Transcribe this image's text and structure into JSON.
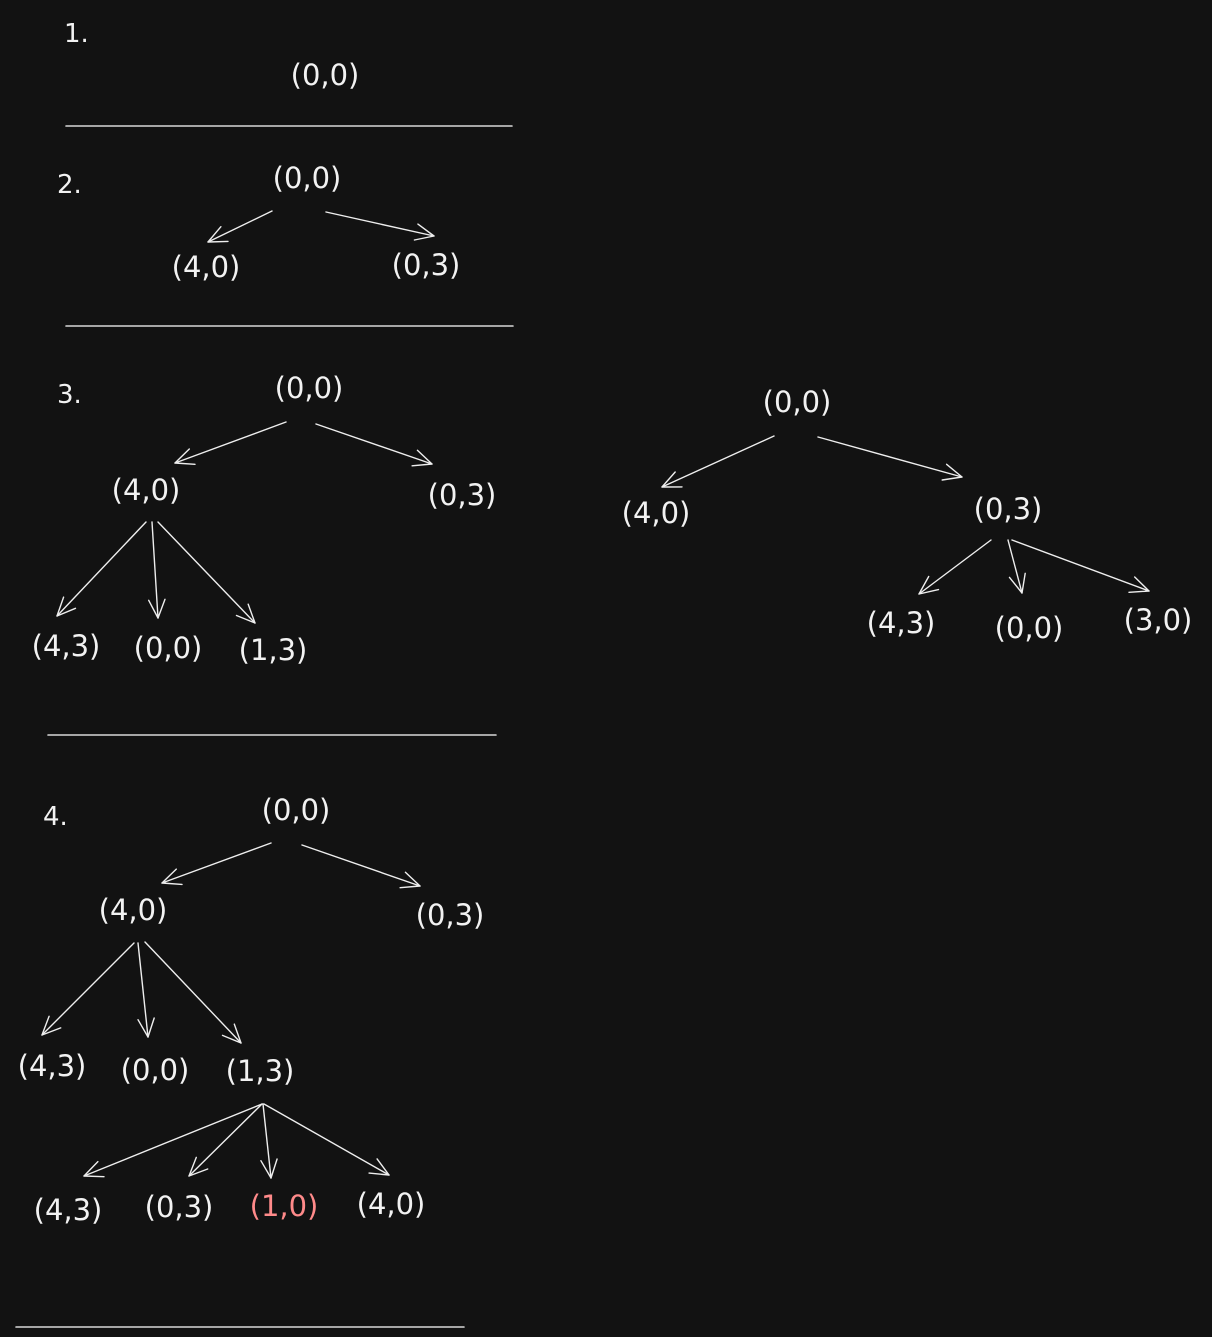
{
  "colors": {
    "background": "#121212",
    "text": "#f2f2f2",
    "highlight": "#ff8a8a"
  },
  "step_1": {
    "label": "1.",
    "root": "(0,0)"
  },
  "step_2": {
    "label": "2.",
    "root": "(0,0)",
    "children": [
      "(4,0)",
      "(0,3)"
    ]
  },
  "step_3": {
    "label": "3.",
    "root": "(0,0)",
    "children": [
      "(4,0)",
      "(0,3)"
    ],
    "grandchildren_of_4_0": [
      "(4,3)",
      "(0,0)",
      "(1,3)"
    ]
  },
  "side_tree": {
    "root": "(0,0)",
    "children": [
      "(4,0)",
      "(0,3)"
    ],
    "grandchildren_of_0_3": [
      "(4,3)",
      "(0,0)",
      "(3,0)"
    ]
  },
  "step_4": {
    "label": "4.",
    "root": "(0,0)",
    "children": [
      "(4,0)",
      "(0,3)"
    ],
    "grandchildren_of_4_0": [
      "(4,3)",
      "(0,0)",
      "(1,3)"
    ],
    "children_of_1_3": [
      "(4,3)",
      "(0,3)",
      "(1,0)",
      "(4,0)"
    ],
    "highlighted_node": "(1,0)"
  }
}
